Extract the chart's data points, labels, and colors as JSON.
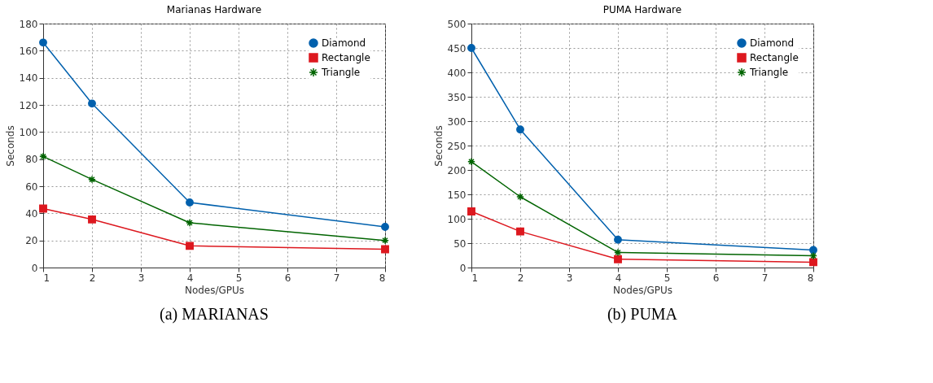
{
  "chart_data": [
    {
      "type": "line",
      "title": "Marianas Hardware",
      "xlabel": "Nodes/GPUs",
      "ylabel": "Seconds",
      "x": [
        1,
        2,
        4,
        8
      ],
      "xlim": [
        1,
        8
      ],
      "xticks": [
        1,
        2,
        3,
        4,
        5,
        6,
        7,
        8
      ],
      "ylim": [
        0,
        180
      ],
      "yticks": [
        0,
        20,
        40,
        60,
        80,
        100,
        120,
        140,
        160,
        180
      ],
      "grid": true,
      "legend": "top right",
      "line_style": "solid",
      "series": [
        {
          "name": "Diamond",
          "color": "#0060ad",
          "marker": "circle",
          "values": [
            166,
            121,
            48,
            30
          ]
        },
        {
          "name": "Rectangle",
          "color": "#dd181f",
          "marker": "square",
          "values": [
            43.5,
            35.5,
            16,
            13.5
          ]
        },
        {
          "name": "Triangle",
          "color": "#006400",
          "marker": "cross",
          "values": [
            82,
            65,
            33,
            20
          ]
        }
      ],
      "annotations": [
        "(a) MARIANAS"
      ]
    },
    {
      "type": "line",
      "title": "PUMA Hardware",
      "xlabel": "Nodes/GPUs",
      "ylabel": "Seconds",
      "x": [
        1,
        2,
        4,
        8
      ],
      "xlim": [
        1,
        8
      ],
      "xticks": [
        1,
        2,
        3,
        4,
        5,
        6,
        7,
        8
      ],
      "ylim": [
        0,
        500
      ],
      "yticks": [
        0,
        50,
        100,
        150,
        200,
        250,
        300,
        350,
        400,
        450,
        500
      ],
      "grid": true,
      "legend": "top right",
      "line_style": "solid",
      "series": [
        {
          "name": "Diamond",
          "color": "#0060ad",
          "marker": "circle",
          "values": [
            450,
            283,
            57,
            36
          ]
        },
        {
          "name": "Rectangle",
          "color": "#dd181f",
          "marker": "square",
          "values": [
            115,
            74,
            17,
            11
          ]
        },
        {
          "name": "Triangle",
          "color": "#006400",
          "marker": "cross",
          "values": [
            217,
            145,
            31,
            24
          ]
        }
      ],
      "annotations": [
        "(b) PUMA"
      ]
    }
  ]
}
